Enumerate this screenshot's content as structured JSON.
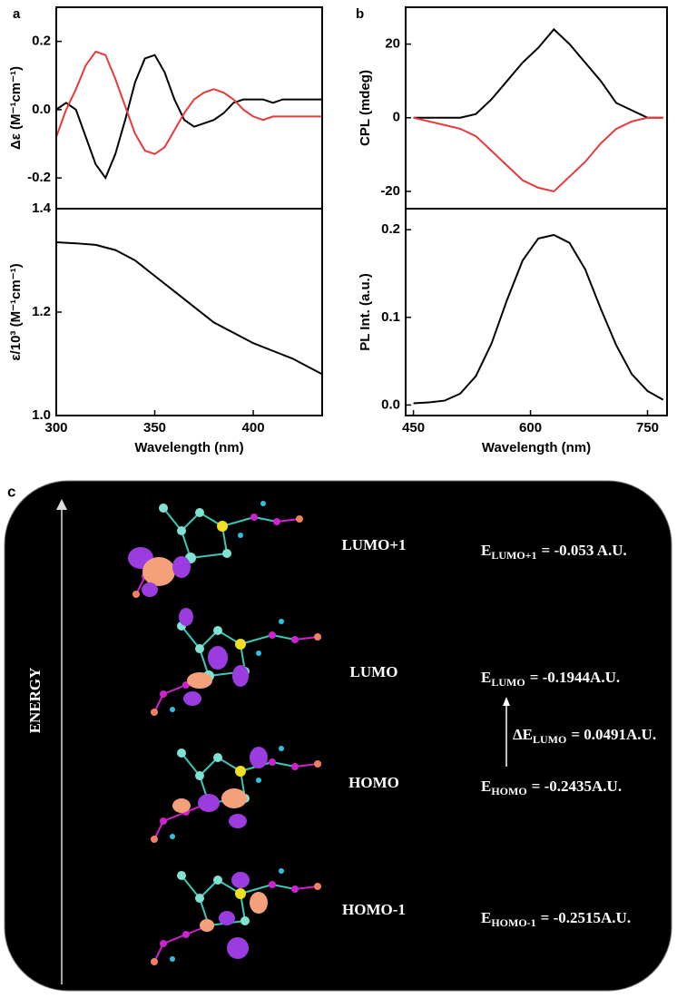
{
  "panel_labels": [
    "a",
    "b",
    "c"
  ],
  "chart_data": [
    {
      "type": "line",
      "ylabel": "Δε (M⁻¹cm⁻¹)",
      "x": [
        300,
        305,
        310,
        315,
        320,
        325,
        330,
        335,
        340,
        345,
        350,
        355,
        360,
        365,
        370,
        375,
        380,
        385,
        390,
        395,
        400,
        405,
        410,
        415,
        420,
        425,
        430,
        435
      ],
      "series": [
        {
          "color": "#000000",
          "values": [
            0.0,
            0.02,
            0.0,
            -0.08,
            -0.16,
            -0.2,
            -0.13,
            -0.03,
            0.08,
            0.15,
            0.16,
            0.11,
            0.03,
            -0.03,
            -0.05,
            -0.04,
            -0.03,
            -0.01,
            0.02,
            0.03,
            0.03,
            0.03,
            0.02,
            0.03,
            0.03,
            0.03,
            0.03,
            0.03
          ]
        },
        {
          "color": "#e8393a",
          "values": [
            -0.08,
            0.0,
            0.06,
            0.13,
            0.17,
            0.16,
            0.09,
            0.01,
            -0.07,
            -0.12,
            -0.13,
            -0.11,
            -0.06,
            -0.01,
            0.03,
            0.05,
            0.06,
            0.05,
            0.03,
            0.0,
            -0.02,
            -0.03,
            -0.02,
            -0.02,
            -0.02,
            -0.02,
            -0.02,
            -0.02
          ]
        }
      ],
      "xlim": [
        300,
        435
      ],
      "ylim": [
        -0.29,
        0.3
      ],
      "yticks": [
        -0.2,
        {
          "value": 0,
          "label": "0.0"
        },
        0.2
      ]
    },
    {
      "type": "line",
      "ylabel": "ε/10³ (M⁻¹cm⁻¹)",
      "xlabel": "Wavelength (nm)",
      "x": [
        300,
        310,
        320,
        330,
        340,
        350,
        360,
        370,
        380,
        390,
        400,
        410,
        420,
        430,
        435
      ],
      "series": [
        {
          "color": "#000000",
          "values": [
            1.335,
            1.333,
            1.33,
            1.32,
            1.3,
            1.27,
            1.24,
            1.21,
            1.18,
            1.16,
            1.14,
            1.125,
            1.11,
            1.09,
            1.08
          ]
        }
      ],
      "xlim": [
        300,
        435
      ],
      "ylim": [
        1.0,
        1.4
      ],
      "xticks": [
        300,
        350,
        400
      ],
      "yticks": [
        {
          "value": 1.0,
          "label": "1.0"
        },
        1.2,
        {
          "value": 1.4,
          "label": "1.4"
        }
      ]
    },
    {
      "type": "line",
      "ylabel": "CPL (mdeg)",
      "x": [
        450,
        470,
        490,
        510,
        530,
        550,
        570,
        590,
        610,
        630,
        650,
        670,
        690,
        710,
        730,
        750,
        770
      ],
      "series": [
        {
          "color": "#000000",
          "values": [
            0,
            0,
            0,
            0,
            1,
            5,
            10,
            15,
            19,
            24,
            20,
            15,
            10,
            4,
            2,
            0,
            0
          ]
        },
        {
          "color": "#e8393a",
          "values": [
            0,
            -1,
            -2,
            -3,
            -5,
            -9,
            -13,
            -17,
            -19,
            -20,
            -16,
            -12,
            -7,
            -3,
            -1,
            0,
            0
          ]
        }
      ],
      "xlim": [
        440,
        775
      ],
      "ylim": [
        -24.7,
        30
      ],
      "yticks": [
        -20,
        0,
        20
      ]
    },
    {
      "type": "line",
      "ylabel": "PL Int. (a.u.)",
      "xlabel": "Wavelength (nm)",
      "x": [
        450,
        470,
        490,
        510,
        530,
        550,
        570,
        590,
        610,
        630,
        650,
        670,
        690,
        710,
        730,
        750,
        770
      ],
      "series": [
        {
          "color": "#000000",
          "values": [
            0.002,
            0.003,
            0.005,
            0.013,
            0.033,
            0.07,
            0.12,
            0.165,
            0.19,
            0.194,
            0.185,
            0.155,
            0.11,
            0.068,
            0.035,
            0.016,
            0.006
          ]
        }
      ],
      "xlim": [
        440,
        775
      ],
      "ylim": [
        -0.012,
        0.224
      ],
      "xticks": [
        450,
        600,
        750
      ],
      "yticks": [
        {
          "value": 0,
          "label": "0.0"
        },
        0.1,
        0.2
      ]
    }
  ],
  "diagram": {
    "axis_label": "ENERGY",
    "levels": [
      {
        "label": "LUMO+1",
        "symbol": "E",
        "subscript": "LUMO+1",
        "value": "= -0.053 A.U."
      },
      {
        "label": "LUMO",
        "symbol": "E",
        "subscript": "LUMO",
        "value": "= -0.1944A.U."
      },
      {
        "label": "HOMO",
        "symbol": "E",
        "subscript": "HOMO",
        "value": "= -0.2435A.U."
      },
      {
        "label": "HOMO-1",
        "symbol": "E",
        "subscript": "HOMO-1",
        "value": "= -0.2515A.U."
      }
    ],
    "gap": {
      "symbol": "ΔE",
      "subscript": "LUMO",
      "value": "= 0.0491A.U."
    }
  }
}
